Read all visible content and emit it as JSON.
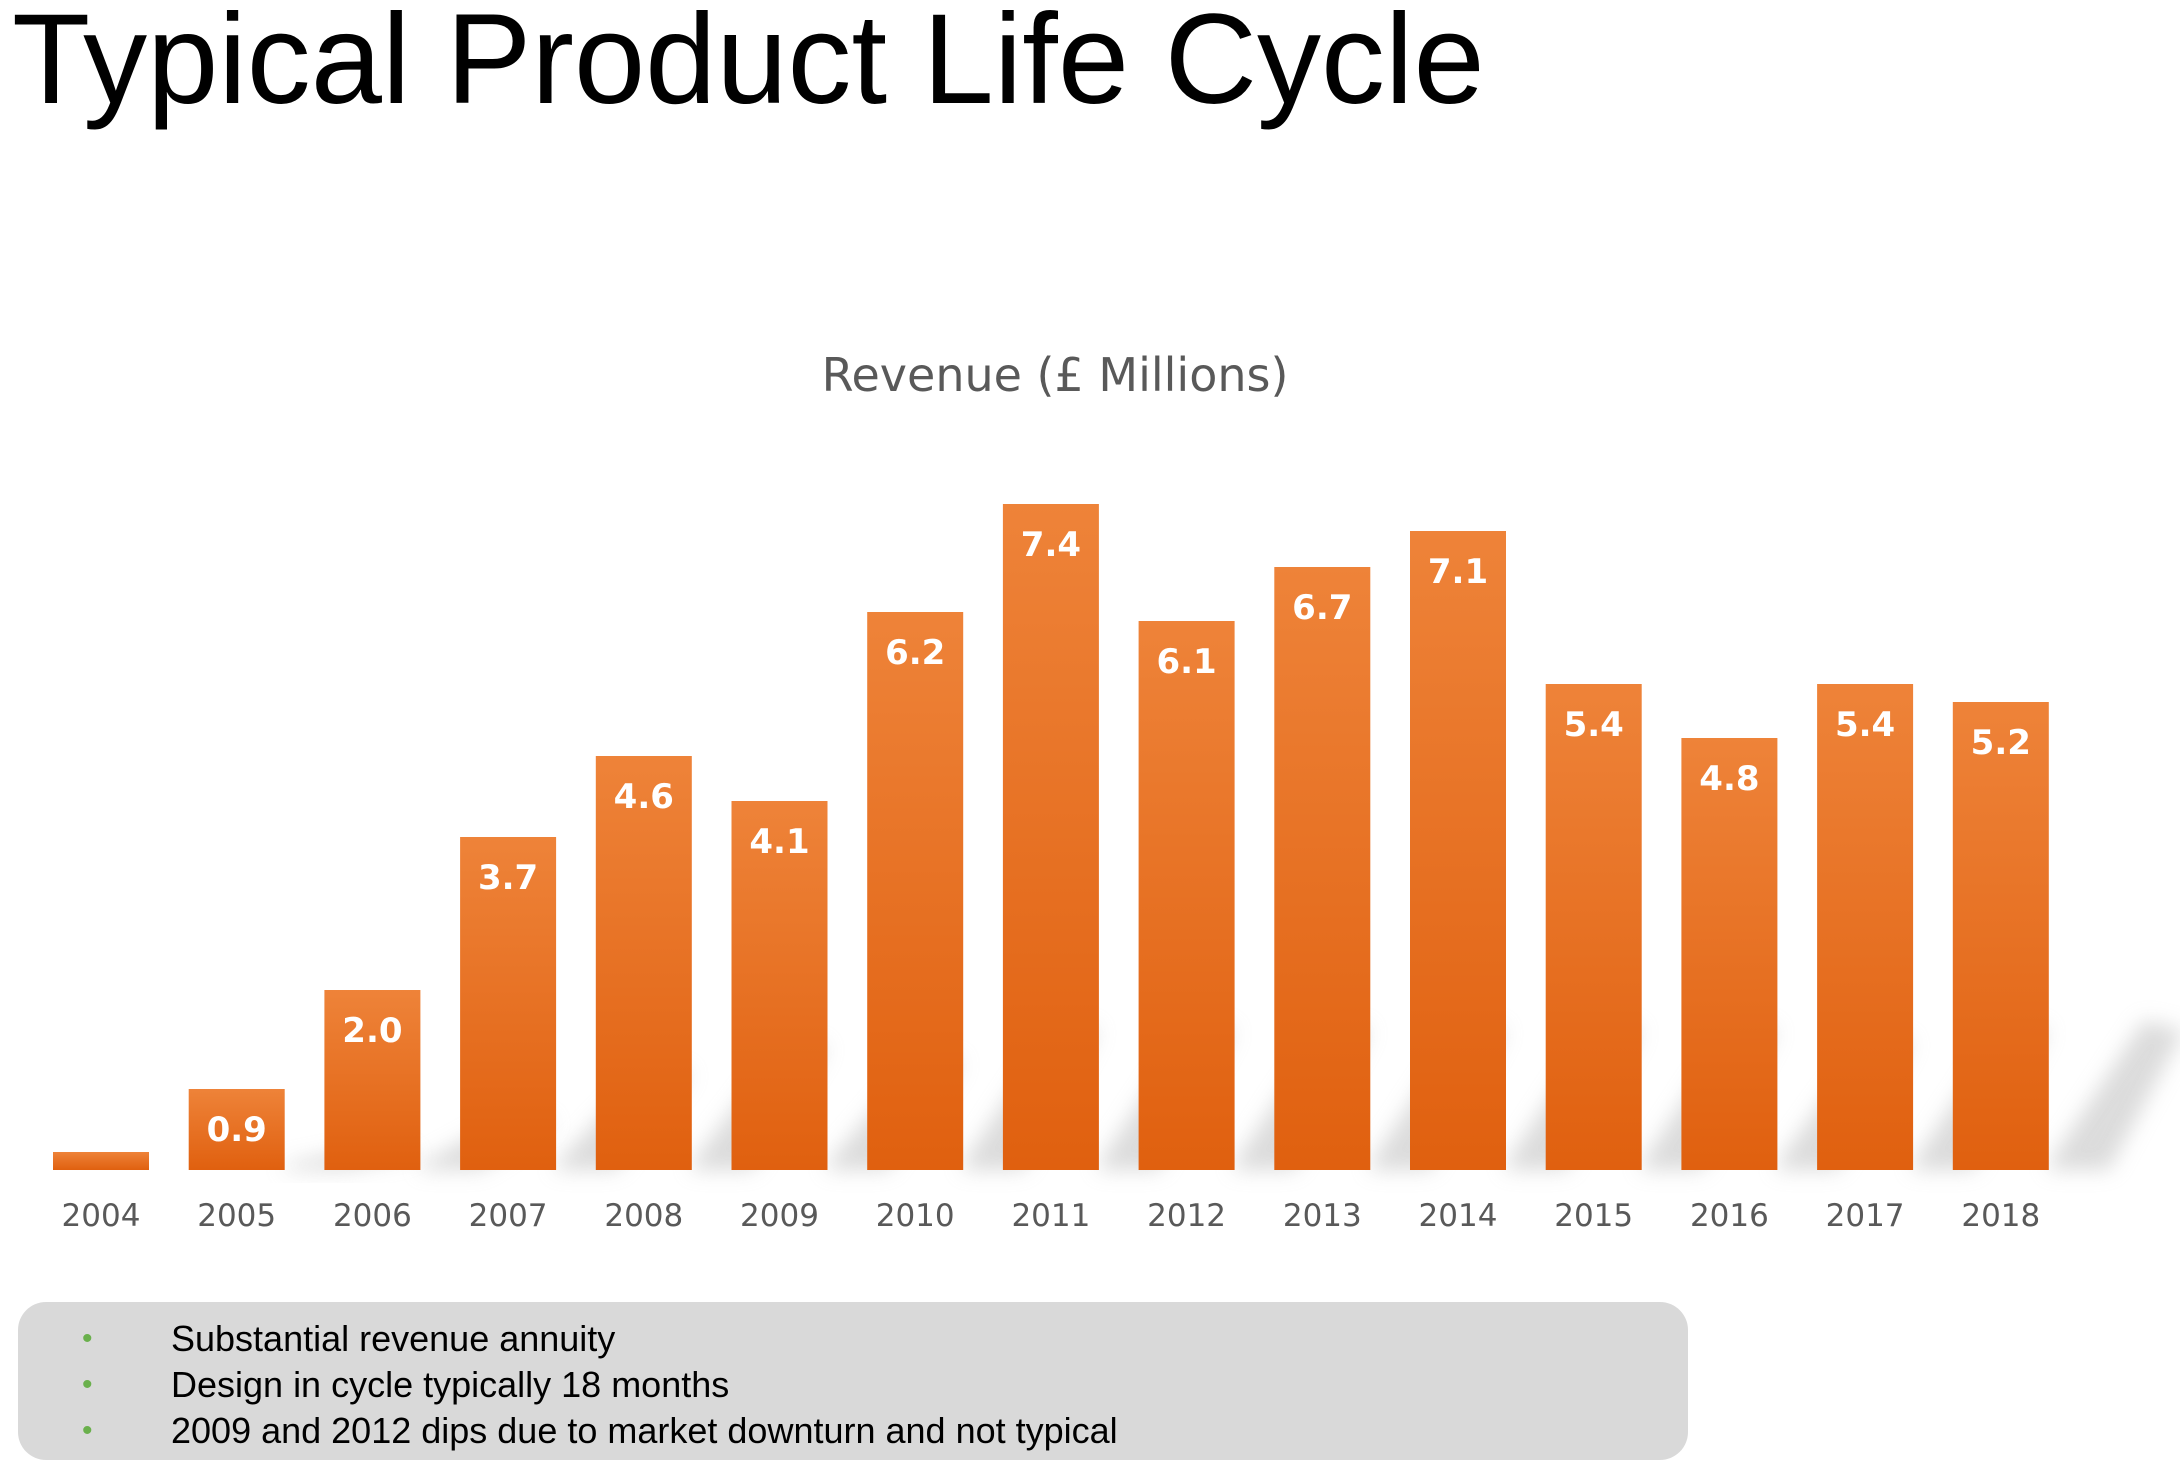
{
  "slide": {
    "title": "Typical Product Life Cycle"
  },
  "chart_data": {
    "type": "bar",
    "title": "Revenue (£ Millions)",
    "xlabel": "",
    "ylabel": "",
    "categories": [
      "2004",
      "2005",
      "2006",
      "2007",
      "2008",
      "2009",
      "2010",
      "2011",
      "2012",
      "2013",
      "2014",
      "2015",
      "2016",
      "2017",
      "2018"
    ],
    "values": [
      0.2,
      0.9,
      2.0,
      3.7,
      4.6,
      4.1,
      6.2,
      7.4,
      6.1,
      6.7,
      7.1,
      5.4,
      4.8,
      5.4,
      5.2
    ],
    "data_labels": [
      "",
      "0.9",
      "2.0",
      "3.7",
      "4.6",
      "4.1",
      "6.2",
      "7.4",
      "6.1",
      "6.7",
      "7.1",
      "5.4",
      "4.8",
      "5.4",
      "5.2"
    ],
    "ylim": [
      0,
      7.4
    ],
    "grid": false,
    "legend": "none",
    "colors": {
      "bar_top": "#ee8339",
      "bar_bottom": "#e0600f",
      "label": "#ffffff",
      "tick": "#595959",
      "shadow": "#bfbfbf"
    }
  },
  "notes": {
    "bullet_color": "#6ab04c",
    "box_color": "#d9d9d9",
    "items": [
      {
        "bullet": "•",
        "text": "Substantial revenue annuity"
      },
      {
        "bullet": "•",
        "text": "Design in cycle typically 18 months"
      },
      {
        "bullet": "•",
        "text": "2009 and 2012 dips due to market downturn and not typical"
      }
    ]
  }
}
